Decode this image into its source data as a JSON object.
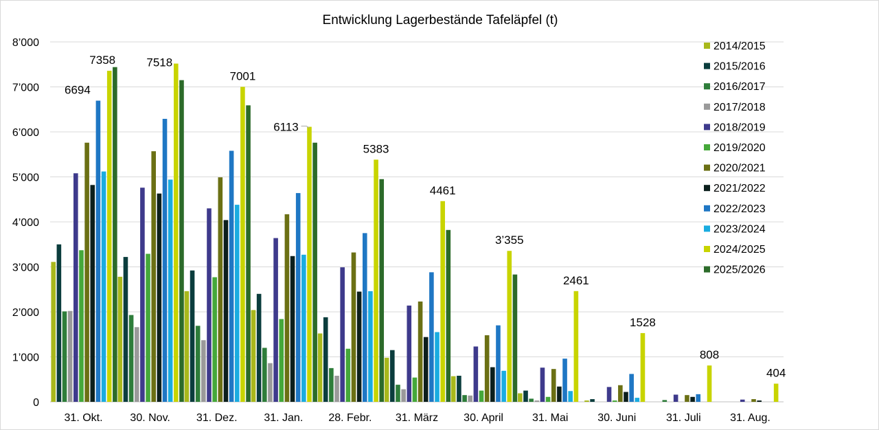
{
  "chart_data": {
    "type": "bar",
    "title": "Entwicklung Lagerbestände Tafeläpfel (t)",
    "xlabel": "",
    "ylabel": "",
    "ylim": [
      0,
      8000
    ],
    "yticks": [
      0,
      1000,
      2000,
      3000,
      4000,
      5000,
      6000,
      7000,
      8000
    ],
    "ytick_labels": [
      "0",
      "1’000",
      "2’000",
      "3’000",
      "4’000",
      "5’000",
      "6’000",
      "7’000",
      "8’000"
    ],
    "grid": true,
    "legend_position": "right",
    "categories": [
      "31. Okt.",
      "30. Nov.",
      "31. Dez.",
      "31. Jan.",
      "28. Febr.",
      "31. März",
      "30. April",
      "31. Mai",
      "30. Juni",
      "31. Juli",
      "31. Aug."
    ],
    "series": [
      {
        "name": "2014/2015",
        "color": "#a8b81c",
        "values": [
          3110,
          2780,
          2460,
          2040,
          1520,
          980,
          570,
          190,
          30,
          0,
          0
        ]
      },
      {
        "name": "2015/2016",
        "color": "#0b3d3d",
        "values": [
          3500,
          3220,
          2920,
          2400,
          1880,
          1150,
          580,
          250,
          60,
          0,
          0
        ]
      },
      {
        "name": "2016/2017",
        "color": "#2e7d3a",
        "values": [
          2010,
          1930,
          1690,
          1200,
          750,
          380,
          150,
          70,
          0,
          40,
          0
        ]
      },
      {
        "name": "2017/2018",
        "color": "#9a9a9a",
        "values": [
          2020,
          1660,
          1370,
          860,
          580,
          280,
          140,
          30,
          0,
          0,
          0
        ]
      },
      {
        "name": "2018/2019",
        "color": "#3e3a8c",
        "values": [
          5080,
          4760,
          4300,
          3640,
          2990,
          2140,
          1230,
          760,
          330,
          160,
          50
        ]
      },
      {
        "name": "2019/2020",
        "color": "#45a83a",
        "values": [
          3370,
          3290,
          2770,
          1840,
          1180,
          540,
          250,
          110,
          30,
          0,
          0
        ]
      },
      {
        "name": "2020/2021",
        "color": "#6b7014",
        "values": [
          5760,
          5570,
          4990,
          4170,
          3320,
          2230,
          1480,
          730,
          370,
          150,
          60
        ]
      },
      {
        "name": "2021/2022",
        "color": "#0c1f1c",
        "values": [
          4820,
          4630,
          4040,
          3240,
          2450,
          1440,
          770,
          340,
          220,
          110,
          30
        ]
      },
      {
        "name": "2022/2023",
        "color": "#1f77c4",
        "values": [
          6694,
          6290,
          5580,
          4640,
          3750,
          2880,
          1700,
          960,
          620,
          170,
          0
        ]
      },
      {
        "name": "2023/2024",
        "color": "#1aace0",
        "values": [
          5120,
          4940,
          4380,
          3270,
          2460,
          1550,
          690,
          240,
          90,
          0,
          0
        ]
      },
      {
        "name": "2024/2025",
        "color": "#c8d400",
        "values": [
          7358,
          7518,
          7001,
          6113,
          5383,
          4461,
          3355,
          2461,
          1528,
          808,
          404
        ]
      },
      {
        "name": "2025/2026",
        "color": "#2c6b2a",
        "values": [
          7440,
          7150,
          6590,
          5760,
          4950,
          3820,
          2830,
          null,
          null,
          null,
          null
        ]
      }
    ],
    "data_labels": [
      {
        "text": "6694",
        "series": "2022/2023",
        "category": "31. Okt."
      },
      {
        "text": "7358",
        "series": "2024/2025",
        "category": "31. Okt."
      },
      {
        "text": "7518",
        "series": "2024/2025",
        "category": "30. Nov."
      },
      {
        "text": "7001",
        "series": "2024/2025",
        "category": "31. Dez."
      },
      {
        "text": "6113",
        "series": "2024/2025",
        "category": "31. Jan.",
        "leader": true
      },
      {
        "text": "5383",
        "series": "2024/2025",
        "category": "28. Febr."
      },
      {
        "text": "4461",
        "series": "2024/2025",
        "category": "31. März"
      },
      {
        "text": "3’355",
        "series": "2024/2025",
        "category": "30. April"
      },
      {
        "text": "2461",
        "series": "2024/2025",
        "category": "31. Mai"
      },
      {
        "text": "1528",
        "series": "2024/2025",
        "category": "30. Juni"
      },
      {
        "text": "808",
        "series": "2024/2025",
        "category": "31. Juli"
      },
      {
        "text": "404",
        "series": "2024/2025",
        "category": "31. Aug."
      }
    ]
  }
}
